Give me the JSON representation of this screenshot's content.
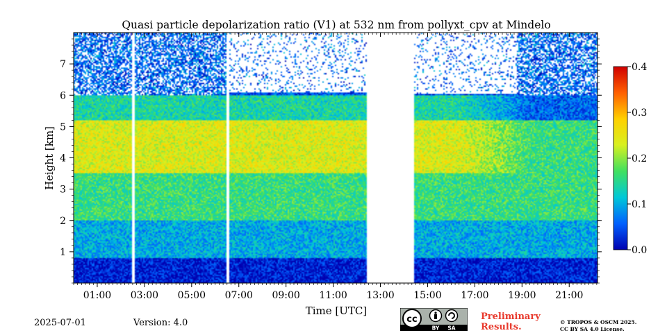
{
  "chart_data": {
    "type": "heatmap",
    "title": "Quasi particle depolarization ratio (V1) at 532 nm from pollyxt_cpv at Mindelo",
    "xlabel": "Time [UTC]",
    "ylabel": "Height [km]",
    "x_range_hours": [
      0,
      22.2
    ],
    "y_range_km": [
      0,
      8
    ],
    "x_ticks": [
      "01:00",
      "03:00",
      "05:00",
      "07:00",
      "09:00",
      "11:00",
      "13:00",
      "15:00",
      "17:00",
      "19:00",
      "21:00"
    ],
    "y_ticks": [
      "1",
      "2",
      "3",
      "4",
      "5",
      "6",
      "7"
    ],
    "colorbar": {
      "min": 0.0,
      "max": 0.4,
      "ticks": [
        "0.0",
        "0.1",
        "0.2",
        "0.3",
        "0.4"
      ],
      "colormap": [
        "#0000b0",
        "#0060ff",
        "#00c8d8",
        "#40e060",
        "#d8f020",
        "#ffd000",
        "#ff6000",
        "#d00000"
      ]
    },
    "data_gaps_hours": [
      [
        2.45,
        2.6
      ],
      [
        6.45,
        6.6
      ],
      [
        12.4,
        14.4
      ]
    ],
    "profile_layers": [
      {
        "height_range_km": [
          0,
          0.8
        ],
        "value": 0.02
      },
      {
        "height_range_km": [
          0.8,
          2.0
        ],
        "value": 0.1
      },
      {
        "height_range_km": [
          2.0,
          3.5
        ],
        "value": 0.16
      },
      {
        "height_range_km": [
          3.5,
          5.2
        ],
        "value": 0.24
      },
      {
        "height_range_km": [
          5.2,
          6.0
        ],
        "value": 0.14
      },
      {
        "height_range_km": [
          6.0,
          8.0
        ],
        "value": 0.05
      }
    ]
  },
  "footer": {
    "date": "2025-07-01",
    "version": "Version: 4.0",
    "preliminary_line1": "Preliminary",
    "preliminary_line2": "Results.",
    "copyright_line1": "© TROPOS & OSCM 2025.",
    "copyright_line2": "CC BY SA 4.0 License.",
    "license_badge": {
      "by": "BY",
      "sa": "SA",
      "icon": "cc-license-icon"
    }
  }
}
